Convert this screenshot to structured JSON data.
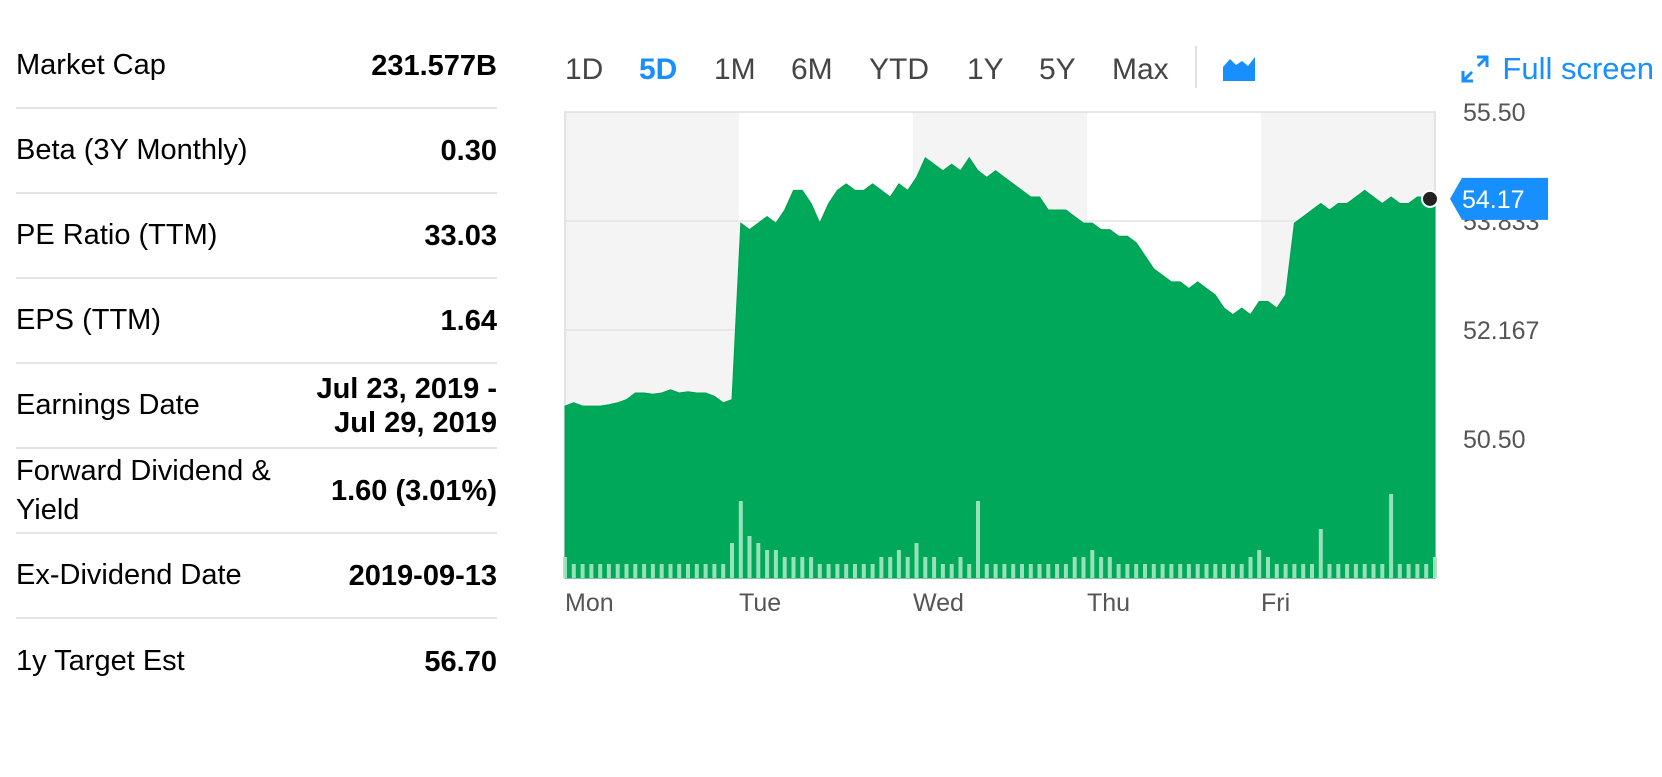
{
  "stats": [
    {
      "label": "Market Cap",
      "value": "231.577B"
    },
    {
      "label": "Beta (3Y Monthly)",
      "value": "0.30"
    },
    {
      "label": "PE Ratio (TTM)",
      "value": "33.03"
    },
    {
      "label": "EPS (TTM)",
      "value": "1.64"
    },
    {
      "label": "Earnings Date",
      "value": "Jul 23, 2019 - Jul 29, 2019"
    },
    {
      "label": "Forward Dividend & Yield",
      "value": "1.60 (3.01%)"
    },
    {
      "label": "Ex-Dividend Date",
      "value": "2019-09-13"
    },
    {
      "label": "1y Target Est",
      "value": "56.70"
    }
  ],
  "toolbar": {
    "ranges": [
      "1D",
      "5D",
      "1M",
      "6M",
      "YTD",
      "1Y",
      "5Y",
      "Max"
    ],
    "active_range": "5D",
    "fullscreen_label": "Full screen",
    "chart_type_icon": "mountain-chart-icon",
    "fullscreen_icon": "expand-arrows-icon"
  },
  "colors": {
    "accent": "#188fff",
    "area_fill": "#00a85a",
    "shade_band": "#f4f4f4"
  },
  "chart_data": {
    "type": "area",
    "x_labels": [
      "Mon",
      "Tue",
      "Wed",
      "Thu",
      "Fri"
    ],
    "y_ticks": [
      "55.50",
      "53.833",
      "52.167",
      "50.50"
    ],
    "ylim": [
      48.37,
      55.5
    ],
    "last_price": "54.17",
    "grid": true,
    "series": [
      {
        "values": [
          51.0,
          51.05,
          51.0,
          51.0,
          51.0,
          51.02,
          51.05,
          51.1,
          51.2,
          51.2,
          51.18,
          51.2,
          51.25,
          51.2,
          51.22,
          51.2,
          51.2,
          51.15,
          51.05,
          51.1,
          53.8,
          53.7,
          53.8,
          53.9,
          53.8,
          54.0,
          54.3,
          54.3,
          54.1,
          53.8,
          54.1,
          54.3,
          54.4,
          54.3,
          54.3,
          54.4,
          54.3,
          54.2,
          54.4,
          54.3,
          54.5,
          54.8,
          54.7,
          54.6,
          54.7,
          54.6,
          54.8,
          54.6,
          54.5,
          54.6,
          54.5,
          54.4,
          54.3,
          54.2,
          54.2,
          54.0,
          54.0,
          54.0,
          53.9,
          53.8,
          53.8,
          53.7,
          53.7,
          53.6,
          53.6,
          53.5,
          53.3,
          53.1,
          53.0,
          52.9,
          52.9,
          52.8,
          52.9,
          52.8,
          52.7,
          52.5,
          52.4,
          52.5,
          52.4,
          52.6,
          52.6,
          52.5,
          52.7,
          53.8,
          53.9,
          54.0,
          54.1,
          54.0,
          54.1,
          54.1,
          54.2,
          54.3,
          54.2,
          54.1,
          54.2,
          54.1,
          54.1,
          54.2,
          54.2,
          54.17
        ]
      }
    ],
    "volume": [
      3,
      2,
      2,
      2,
      2,
      2,
      2,
      2,
      2,
      2,
      2,
      2,
      2,
      2,
      2,
      2,
      2,
      2,
      2,
      5,
      11,
      6,
      5,
      4,
      4,
      3,
      3,
      3,
      3,
      2,
      2,
      2,
      2,
      2,
      2,
      2,
      3,
      3,
      4,
      3,
      5,
      3,
      3,
      2,
      2,
      3,
      2,
      11,
      2,
      2,
      2,
      2,
      2,
      2,
      2,
      2,
      2,
      2,
      3,
      3,
      4,
      3,
      3,
      2,
      2,
      2,
      2,
      2,
      2,
      2,
      2,
      2,
      2,
      2,
      2,
      2,
      2,
      2,
      3,
      4,
      3,
      2,
      2,
      2,
      2,
      2,
      7,
      2,
      2,
      2,
      2,
      2,
      2,
      2,
      12,
      2,
      2,
      2,
      2,
      3
    ]
  }
}
